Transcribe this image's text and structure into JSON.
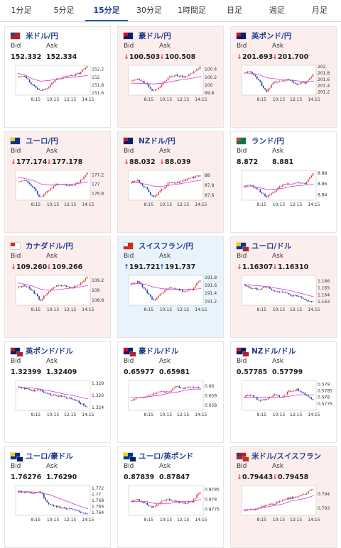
{
  "tabs": [
    {
      "label": "1分足"
    },
    {
      "label": "5分足"
    },
    {
      "label": "15分足",
      "active": true
    },
    {
      "label": "30分足"
    },
    {
      "label": "1時間足"
    },
    {
      "label": "日足"
    },
    {
      "label": "週足"
    },
    {
      "label": "月足"
    }
  ],
  "cards": [
    {
      "name": "米ドル/円",
      "flag": "us",
      "state": "none",
      "bid_label": "Bid",
      "ask_label": "Ask",
      "bid": "152.332",
      "ask": "152.334",
      "arrow": "",
      "chart_data": {
        "type": "candlestick",
        "x_ticks": [
          "8:15",
          "10:15",
          "12:15",
          "14:15"
        ],
        "y_ticks": [
          "152.2",
          "152",
          "151.8",
          "151.6"
        ],
        "ylim": [
          151.55,
          152.3
        ],
        "trend": [
          152.0,
          152.05,
          151.8,
          151.65,
          151.75,
          151.95,
          152.0,
          152.05,
          152.1,
          152.3
        ],
        "ma": [
          152.1,
          152.05,
          151.95,
          151.9,
          151.92,
          151.95,
          151.98,
          152.0,
          152.02,
          152.05
        ]
      }
    },
    {
      "name": "豪ドル/円",
      "flag": "au",
      "state": "down",
      "bid_label": "Bid",
      "ask_label": "Ask",
      "bid": "100.503",
      "ask": "100.508",
      "arrow": "down",
      "chart_data": {
        "type": "candlestick",
        "x_ticks": [
          "8:15",
          "10:15",
          "12:15",
          "14:15"
        ],
        "y_ticks": [
          "100.4",
          "100.2",
          "100",
          "99.8"
        ],
        "ylim": [
          99.75,
          100.5
        ],
        "trend": [
          100.1,
          100.15,
          100.05,
          99.85,
          100.0,
          100.2,
          100.25,
          100.2,
          100.3,
          100.45
        ],
        "ma": [
          100.05,
          100.05,
          100.04,
          100.03,
          100.05,
          100.08,
          100.12,
          100.15,
          100.18,
          100.22
        ]
      }
    },
    {
      "name": "英ポンド/円",
      "flag": "gb",
      "state": "down",
      "bid_label": "Bid",
      "ask_label": "Ask",
      "bid": "201.693",
      "ask": "201.700",
      "arrow": "down",
      "chart_data": {
        "type": "candlestick",
        "x_ticks": [
          "8:15",
          "10:15",
          "12:15",
          "14:15"
        ],
        "y_ticks": [
          "202",
          "201.8",
          "201.6",
          "201.4",
          "201.2"
        ],
        "ylim": [
          201.1,
          202.05
        ],
        "trend": [
          201.8,
          201.85,
          201.6,
          201.2,
          201.5,
          201.55,
          201.6,
          201.45,
          201.5,
          201.75
        ],
        "ma": [
          201.8,
          201.8,
          201.75,
          201.65,
          201.62,
          201.6,
          201.58,
          201.55,
          201.52,
          201.55
        ]
      }
    },
    {
      "name": "ユーロ/円",
      "flag": "eu",
      "state": "down",
      "bid_label": "Bid",
      "ask_label": "Ask",
      "bid": "177.174",
      "ask": "177.178",
      "arrow": "down",
      "chart_data": {
        "type": "candlestick",
        "x_ticks": [
          "8:15",
          "10:15",
          "12:15",
          "14:15"
        ],
        "y_ticks": [
          "177.2",
          "177",
          "176.8"
        ],
        "ylim": [
          176.65,
          177.3
        ],
        "trend": [
          177.05,
          177.1,
          176.95,
          176.7,
          176.85,
          177.0,
          177.0,
          176.95,
          177.05,
          177.25
        ],
        "ma": [
          177.15,
          177.12,
          177.08,
          177.0,
          176.98,
          176.98,
          176.99,
          177.0,
          177.02,
          177.05
        ]
      }
    },
    {
      "name": "NZドル/円",
      "flag": "nz",
      "state": "down",
      "bid_label": "Bid",
      "ask_label": "Ask",
      "bid": "88.032",
      "ask": "88.039",
      "arrow": "down",
      "chart_data": {
        "type": "candlestick",
        "x_ticks": [
          "8:15",
          "10:15",
          "12:15",
          "14:15"
        ],
        "y_ticks": [
          "88",
          "87.8",
          "87.6"
        ],
        "ylim": [
          87.5,
          88.1
        ],
        "trend": [
          87.85,
          87.9,
          87.75,
          87.55,
          87.7,
          87.85,
          87.85,
          87.9,
          87.95,
          88.0
        ],
        "ma": [
          87.85,
          87.85,
          87.82,
          87.78,
          87.78,
          87.8,
          87.82,
          87.85,
          87.88,
          87.9
        ]
      }
    },
    {
      "name": "ランド/円",
      "flag": "za",
      "state": "none",
      "bid_label": "Bid",
      "ask_label": "Ask",
      "bid": "8.872",
      "ask": "8.881",
      "arrow": "",
      "chart_data": {
        "type": "candlestick",
        "x_ticks": [
          "8:15",
          "10:15",
          "12:15",
          "14:15"
        ],
        "y_ticks": [
          "8.88",
          "8.86",
          "8.84"
        ],
        "ylim": [
          8.83,
          8.885
        ],
        "trend": [
          8.855,
          8.858,
          8.85,
          8.835,
          8.845,
          8.858,
          8.86,
          8.862,
          8.86,
          8.88
        ],
        "ma": [
          8.855,
          8.855,
          8.853,
          8.85,
          8.85,
          8.852,
          8.855,
          8.857,
          8.858,
          8.86
        ]
      }
    },
    {
      "name": "カナダドル/円",
      "flag": "ca",
      "state": "down",
      "bid_label": "Bid",
      "ask_label": "Ask",
      "bid": "109.260",
      "ask": "109.266",
      "arrow": "down",
      "chart_data": {
        "type": "candlestick",
        "x_ticks": [
          "8:15",
          "10:15",
          "12:15",
          "14:15"
        ],
        "y_ticks": [
          "109.2",
          "109",
          "108.8"
        ],
        "ylim": [
          108.7,
          109.3
        ],
        "trend": [
          109.05,
          109.1,
          109.0,
          108.8,
          108.95,
          109.1,
          109.1,
          109.05,
          109.1,
          109.28
        ],
        "ma": [
          109.15,
          109.12,
          109.08,
          109.02,
          109.0,
          109.01,
          109.03,
          109.05,
          109.07,
          109.1
        ]
      }
    },
    {
      "name": "スイスフラン/円",
      "flag": "ch",
      "state": "up",
      "bid_label": "Bid",
      "ask_label": "Ask",
      "bid": "191.721",
      "ask": "191.737",
      "arrow": "up",
      "chart_data": {
        "type": "candlestick",
        "x_ticks": [
          "8:15",
          "10:15",
          "12:15",
          "14:15"
        ],
        "y_ticks": [
          "191.8",
          "191.6",
          "191.4",
          "191.2"
        ],
        "ylim": [
          191.1,
          191.85
        ],
        "trend": [
          191.6,
          191.7,
          191.5,
          191.2,
          191.4,
          191.55,
          191.5,
          191.45,
          191.5,
          191.75
        ],
        "ma": [
          191.65,
          191.65,
          191.62,
          191.55,
          191.52,
          191.5,
          191.5,
          191.5,
          191.5,
          191.52
        ]
      }
    },
    {
      "name": "ユーロ/ドル",
      "flag": "eu-us",
      "state": "down",
      "bid_label": "Bid",
      "ask_label": "Ask",
      "bid": "1.16307",
      "ask": "1.16310",
      "arrow": "down",
      "chart_data": {
        "type": "candlestick",
        "x_ticks": [
          "8:15",
          "10:15",
          "12:15",
          "14:15"
        ],
        "y_ticks": [
          "1.166",
          "1.165",
          "1.164",
          "1.163"
        ],
        "ylim": [
          1.1625,
          1.1668
        ],
        "trend": [
          1.1655,
          1.165,
          1.1648,
          1.1652,
          1.1645,
          1.1645,
          1.164,
          1.1638,
          1.1632,
          1.163
        ],
        "ma": [
          1.1655,
          1.1654,
          1.1653,
          1.1652,
          1.165,
          1.1648,
          1.1646,
          1.1643,
          1.164,
          1.1637
        ]
      }
    },
    {
      "name": "英ポンド/ドル",
      "flag": "gb-us",
      "state": "none",
      "bid_label": "Bid",
      "ask_label": "Ask",
      "bid": "1.32399",
      "ask": "1.32409",
      "arrow": "",
      "chart_data": {
        "type": "candlestick",
        "x_ticks": [
          "8:15",
          "10:15",
          "12:15",
          "14:15"
        ],
        "y_ticks": [
          "1.328",
          "1.326",
          "1.324"
        ],
        "ylim": [
          1.3235,
          1.3285
        ],
        "trend": [
          1.3275,
          1.3272,
          1.3268,
          1.327,
          1.3262,
          1.326,
          1.3258,
          1.3255,
          1.3248,
          1.324
        ],
        "ma": [
          1.3274,
          1.3273,
          1.3272,
          1.327,
          1.3268,
          1.3265,
          1.3262,
          1.326,
          1.3257,
          1.3254
        ]
      }
    },
    {
      "name": "豪ドル/ドル",
      "flag": "au-us",
      "state": "none",
      "bid_label": "Bid",
      "ask_label": "Ask",
      "bid": "0.65977",
      "ask": "0.65981",
      "arrow": "",
      "chart_data": {
        "type": "candlestick",
        "x_ticks": [
          "8:15",
          "10:15",
          "12:15",
          "14:15"
        ],
        "y_ticks": [
          "0.66",
          "0.659",
          "0.658"
        ],
        "ylim": [
          0.6575,
          0.6606
        ],
        "trend": [
          0.6585,
          0.6588,
          0.6589,
          0.6592,
          0.6595,
          0.6594,
          0.66,
          0.6598,
          0.6599,
          0.6598
        ],
        "ma": [
          0.6588,
          0.6588,
          0.6589,
          0.659,
          0.6591,
          0.6593,
          0.6594,
          0.6596,
          0.6597,
          0.6597
        ]
      }
    },
    {
      "name": "NZドル/ドル",
      "flag": "nz-us",
      "state": "none",
      "bid_label": "Bid",
      "ask_label": "Ask",
      "bid": "0.57785",
      "ask": "0.57799",
      "arrow": "",
      "chart_data": {
        "type": "candlestick",
        "x_ticks": [
          "8:15",
          "10:15",
          "12:15",
          "14:15"
        ],
        "y_ticks": [
          "0.579",
          "0.5785",
          "0.578",
          "0.5775"
        ],
        "ylim": [
          0.577,
          0.5793
        ],
        "trend": [
          0.578,
          0.5782,
          0.5778,
          0.5778,
          0.5782,
          0.578,
          0.5785,
          0.5786,
          0.5782,
          0.5778
        ],
        "ma": [
          0.578,
          0.578,
          0.578,
          0.578,
          0.578,
          0.578,
          0.5781,
          0.5782,
          0.5782,
          0.5782
        ]
      }
    },
    {
      "name": "ユーロ/豪ドル",
      "flag": "eu-au",
      "state": "none",
      "bid_label": "Bid",
      "ask_label": "Ask",
      "bid": "1.76276",
      "ask": "1.76290",
      "arrow": "",
      "chart_data": {
        "type": "candlestick",
        "x_ticks": [
          "8:15",
          "10:15",
          "12:15",
          "14:15"
        ],
        "y_ticks": [
          "1.772",
          "1.77",
          "1.768",
          "1.766",
          "1.764"
        ],
        "ylim": [
          1.763,
          1.773
        ],
        "trend": [
          1.771,
          1.7708,
          1.7705,
          1.771,
          1.767,
          1.766,
          1.7655,
          1.765,
          1.7642,
          1.7635
        ],
        "ma": [
          1.7712,
          1.771,
          1.7708,
          1.7705,
          1.77,
          1.769,
          1.768,
          1.767,
          1.766,
          1.7652
        ]
      }
    },
    {
      "name": "ユーロ/英ポンド",
      "flag": "eu-gb",
      "state": "none",
      "bid_label": "Bid",
      "ask_label": "Ask",
      "bid": "0.87839",
      "ask": "0.87847",
      "arrow": "",
      "chart_data": {
        "type": "candlestick",
        "x_ticks": [
          "8:15",
          "10:15",
          "12:15",
          "14:15"
        ],
        "y_ticks": [
          "0.8785",
          "0.878",
          "0.8775"
        ],
        "ylim": [
          0.8772,
          0.8787
        ],
        "trend": [
          0.8779,
          0.878,
          0.8778,
          0.8776,
          0.8779,
          0.878,
          0.8779,
          0.8778,
          0.8779,
          0.8784
        ],
        "ma": [
          0.8779,
          0.8779,
          0.8779,
          0.8778,
          0.8778,
          0.8778,
          0.8779,
          0.8779,
          0.8779,
          0.878
        ]
      }
    },
    {
      "name": "米ドル/スイスフラン",
      "flag": "us-ch",
      "state": "down",
      "bid_label": "Bid",
      "ask_label": "Ask",
      "bid": "0.79443",
      "ask": "0.79458",
      "arrow": "down",
      "chart_data": {
        "type": "candlestick",
        "x_ticks": [
          "8:15",
          "10:15",
          "12:15",
          "14:15"
        ],
        "y_ticks": [
          "0.794",
          "0.793"
        ],
        "ylim": [
          0.7925,
          0.7946
        ],
        "trend": [
          0.7928,
          0.7929,
          0.793,
          0.7932,
          0.7933,
          0.7936,
          0.7937,
          0.7938,
          0.794,
          0.7944
        ],
        "ma": [
          0.7929,
          0.7929,
          0.793,
          0.7931,
          0.7932,
          0.7933,
          0.7935,
          0.7936,
          0.7937,
          0.7939
        ]
      }
    }
  ]
}
